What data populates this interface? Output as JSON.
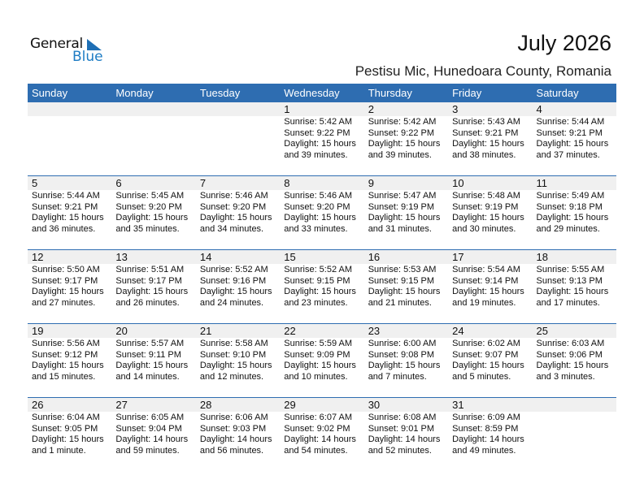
{
  "logo": {
    "general": "General",
    "blue": "Blue"
  },
  "title": "July 2026",
  "location": "Pestisu Mic, Hunedoara County, Romania",
  "days": [
    "Sunday",
    "Monday",
    "Tuesday",
    "Wednesday",
    "Thursday",
    "Friday",
    "Saturday"
  ],
  "weeks": [
    [
      null,
      null,
      null,
      {
        "d": "1",
        "sr": "Sunrise: 5:42 AM",
        "ss": "Sunset: 9:22 PM",
        "dl": "Daylight: 15 hours",
        "dm": "and 39 minutes."
      },
      {
        "d": "2",
        "sr": "Sunrise: 5:42 AM",
        "ss": "Sunset: 9:22 PM",
        "dl": "Daylight: 15 hours",
        "dm": "and 39 minutes."
      },
      {
        "d": "3",
        "sr": "Sunrise: 5:43 AM",
        "ss": "Sunset: 9:21 PM",
        "dl": "Daylight: 15 hours",
        "dm": "and 38 minutes."
      },
      {
        "d": "4",
        "sr": "Sunrise: 5:44 AM",
        "ss": "Sunset: 9:21 PM",
        "dl": "Daylight: 15 hours",
        "dm": "and 37 minutes."
      }
    ],
    [
      {
        "d": "5",
        "sr": "Sunrise: 5:44 AM",
        "ss": "Sunset: 9:21 PM",
        "dl": "Daylight: 15 hours",
        "dm": "and 36 minutes."
      },
      {
        "d": "6",
        "sr": "Sunrise: 5:45 AM",
        "ss": "Sunset: 9:20 PM",
        "dl": "Daylight: 15 hours",
        "dm": "and 35 minutes."
      },
      {
        "d": "7",
        "sr": "Sunrise: 5:46 AM",
        "ss": "Sunset: 9:20 PM",
        "dl": "Daylight: 15 hours",
        "dm": "and 34 minutes."
      },
      {
        "d": "8",
        "sr": "Sunrise: 5:46 AM",
        "ss": "Sunset: 9:20 PM",
        "dl": "Daylight: 15 hours",
        "dm": "and 33 minutes."
      },
      {
        "d": "9",
        "sr": "Sunrise: 5:47 AM",
        "ss": "Sunset: 9:19 PM",
        "dl": "Daylight: 15 hours",
        "dm": "and 31 minutes."
      },
      {
        "d": "10",
        "sr": "Sunrise: 5:48 AM",
        "ss": "Sunset: 9:19 PM",
        "dl": "Daylight: 15 hours",
        "dm": "and 30 minutes."
      },
      {
        "d": "11",
        "sr": "Sunrise: 5:49 AM",
        "ss": "Sunset: 9:18 PM",
        "dl": "Daylight: 15 hours",
        "dm": "and 29 minutes."
      }
    ],
    [
      {
        "d": "12",
        "sr": "Sunrise: 5:50 AM",
        "ss": "Sunset: 9:17 PM",
        "dl": "Daylight: 15 hours",
        "dm": "and 27 minutes."
      },
      {
        "d": "13",
        "sr": "Sunrise: 5:51 AM",
        "ss": "Sunset: 9:17 PM",
        "dl": "Daylight: 15 hours",
        "dm": "and 26 minutes."
      },
      {
        "d": "14",
        "sr": "Sunrise: 5:52 AM",
        "ss": "Sunset: 9:16 PM",
        "dl": "Daylight: 15 hours",
        "dm": "and 24 minutes."
      },
      {
        "d": "15",
        "sr": "Sunrise: 5:52 AM",
        "ss": "Sunset: 9:15 PM",
        "dl": "Daylight: 15 hours",
        "dm": "and 23 minutes."
      },
      {
        "d": "16",
        "sr": "Sunrise: 5:53 AM",
        "ss": "Sunset: 9:15 PM",
        "dl": "Daylight: 15 hours",
        "dm": "and 21 minutes."
      },
      {
        "d": "17",
        "sr": "Sunrise: 5:54 AM",
        "ss": "Sunset: 9:14 PM",
        "dl": "Daylight: 15 hours",
        "dm": "and 19 minutes."
      },
      {
        "d": "18",
        "sr": "Sunrise: 5:55 AM",
        "ss": "Sunset: 9:13 PM",
        "dl": "Daylight: 15 hours",
        "dm": "and 17 minutes."
      }
    ],
    [
      {
        "d": "19",
        "sr": "Sunrise: 5:56 AM",
        "ss": "Sunset: 9:12 PM",
        "dl": "Daylight: 15 hours",
        "dm": "and 15 minutes."
      },
      {
        "d": "20",
        "sr": "Sunrise: 5:57 AM",
        "ss": "Sunset: 9:11 PM",
        "dl": "Daylight: 15 hours",
        "dm": "and 14 minutes."
      },
      {
        "d": "21",
        "sr": "Sunrise: 5:58 AM",
        "ss": "Sunset: 9:10 PM",
        "dl": "Daylight: 15 hours",
        "dm": "and 12 minutes."
      },
      {
        "d": "22",
        "sr": "Sunrise: 5:59 AM",
        "ss": "Sunset: 9:09 PM",
        "dl": "Daylight: 15 hours",
        "dm": "and 10 minutes."
      },
      {
        "d": "23",
        "sr": "Sunrise: 6:00 AM",
        "ss": "Sunset: 9:08 PM",
        "dl": "Daylight: 15 hours",
        "dm": "and 7 minutes."
      },
      {
        "d": "24",
        "sr": "Sunrise: 6:02 AM",
        "ss": "Sunset: 9:07 PM",
        "dl": "Daylight: 15 hours",
        "dm": "and 5 minutes."
      },
      {
        "d": "25",
        "sr": "Sunrise: 6:03 AM",
        "ss": "Sunset: 9:06 PM",
        "dl": "Daylight: 15 hours",
        "dm": "and 3 minutes."
      }
    ],
    [
      {
        "d": "26",
        "sr": "Sunrise: 6:04 AM",
        "ss": "Sunset: 9:05 PM",
        "dl": "Daylight: 15 hours",
        "dm": "and 1 minute."
      },
      {
        "d": "27",
        "sr": "Sunrise: 6:05 AM",
        "ss": "Sunset: 9:04 PM",
        "dl": "Daylight: 14 hours",
        "dm": "and 59 minutes."
      },
      {
        "d": "28",
        "sr": "Sunrise: 6:06 AM",
        "ss": "Sunset: 9:03 PM",
        "dl": "Daylight: 14 hours",
        "dm": "and 56 minutes."
      },
      {
        "d": "29",
        "sr": "Sunrise: 6:07 AM",
        "ss": "Sunset: 9:02 PM",
        "dl": "Daylight: 14 hours",
        "dm": "and 54 minutes."
      },
      {
        "d": "30",
        "sr": "Sunrise: 6:08 AM",
        "ss": "Sunset: 9:01 PM",
        "dl": "Daylight: 14 hours",
        "dm": "and 52 minutes."
      },
      {
        "d": "31",
        "sr": "Sunrise: 6:09 AM",
        "ss": "Sunset: 8:59 PM",
        "dl": "Daylight: 14 hours",
        "dm": "and 49 minutes."
      },
      null
    ]
  ]
}
